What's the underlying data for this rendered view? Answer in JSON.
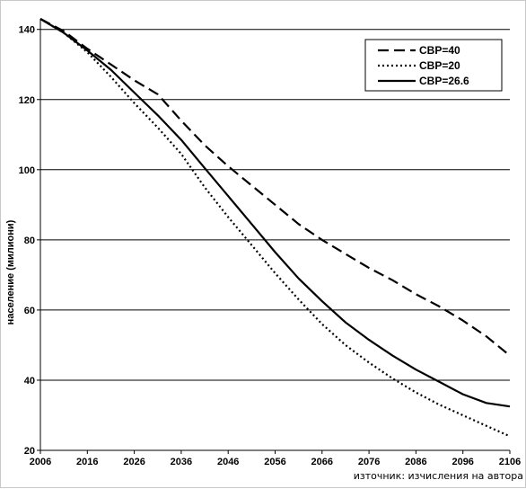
{
  "chart_data": {
    "type": "line",
    "title": "",
    "xlabel": "",
    "ylabel": "население (милиони)",
    "source_note": "източник: изчисления на автора",
    "xlim": [
      2006,
      2106
    ],
    "ylim": [
      20,
      145
    ],
    "x_ticks": [
      "2006",
      "2016",
      "2026",
      "2036",
      "2046",
      "2056",
      "2066",
      "2076",
      "2086",
      "2096",
      "2106"
    ],
    "y_ticks": [
      "20",
      "40",
      "60",
      "80",
      "100",
      "120",
      "140"
    ],
    "grid": "horizontal",
    "legend_position": "top-right",
    "series": [
      {
        "name": "СВР=40",
        "style": "dashed",
        "color": "#000000",
        "x": [
          2006,
          2011,
          2016,
          2021,
          2026,
          2031,
          2036,
          2041,
          2046,
          2051,
          2056,
          2061,
          2066,
          2071,
          2076,
          2081,
          2086,
          2091,
          2096,
          2101,
          2106
        ],
        "y": [
          143,
          139.5,
          134.5,
          130,
          125.5,
          121.5,
          114,
          107,
          101,
          95.5,
          90,
          84.5,
          80,
          76,
          72,
          68.5,
          64.5,
          61,
          57,
          52.5,
          47
        ]
      },
      {
        "name": "СВР=20",
        "style": "dotted",
        "color": "#000000",
        "x": [
          2006,
          2011,
          2016,
          2021,
          2026,
          2031,
          2036,
          2041,
          2046,
          2051,
          2056,
          2061,
          2066,
          2071,
          2076,
          2081,
          2086,
          2091,
          2096,
          2101,
          2106
        ],
        "y": [
          143,
          139,
          133.5,
          126.5,
          119,
          112,
          104.5,
          95,
          86.5,
          78.5,
          70.5,
          63,
          56,
          50,
          45,
          40.5,
          36.5,
          33,
          30,
          27,
          24
        ]
      },
      {
        "name": "СВР=26.6",
        "style": "solid",
        "color": "#000000",
        "x": [
          2006,
          2011,
          2016,
          2021,
          2026,
          2031,
          2036,
          2041,
          2046,
          2051,
          2056,
          2061,
          2066,
          2071,
          2076,
          2081,
          2086,
          2091,
          2096,
          2101,
          2106
        ],
        "y": [
          143,
          139,
          134,
          128.5,
          122,
          115.5,
          108.5,
          100.5,
          92.5,
          84.5,
          76.5,
          69,
          62.5,
          56.5,
          51.5,
          47,
          43,
          39.5,
          36,
          33.5,
          32.5
        ]
      }
    ]
  }
}
